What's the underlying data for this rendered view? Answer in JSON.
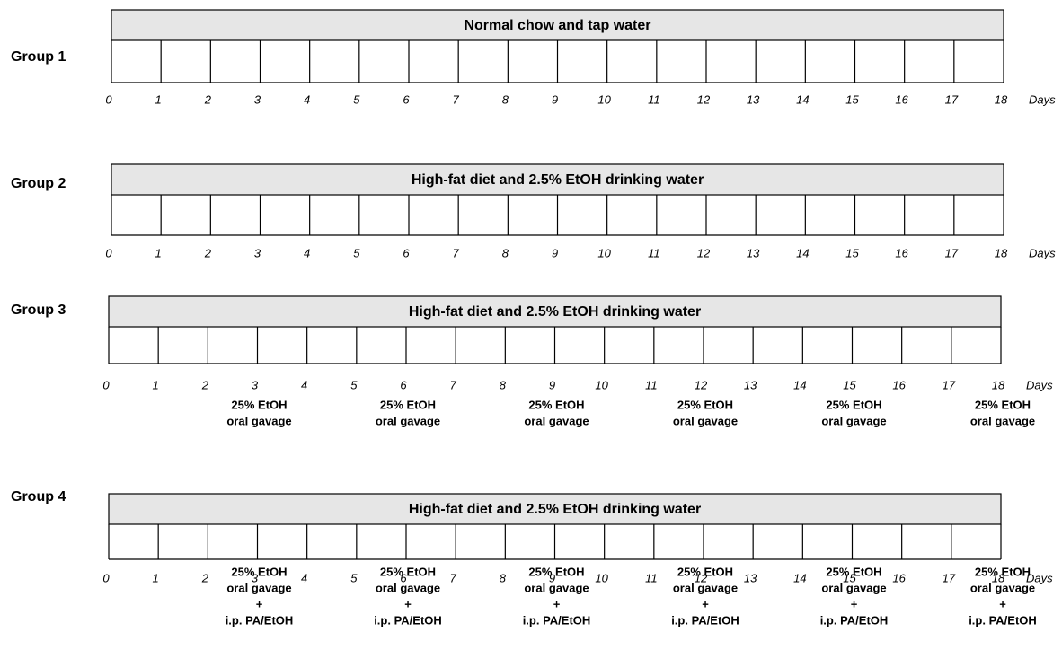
{
  "days_unit": "Days",
  "day_labels": [
    "0",
    "1",
    "2",
    "3",
    "4",
    "5",
    "6",
    "7",
    "8",
    "9",
    "10",
    "11",
    "12",
    "13",
    "14",
    "15",
    "16",
    "17",
    "18"
  ],
  "groups": [
    {
      "label": "Group 1",
      "bar_text": "Normal chow and tap water",
      "treatments": []
    },
    {
      "label": "Group 2",
      "bar_text": "High-fat diet and 2.5% EtOH drinking water",
      "treatments": []
    },
    {
      "label": "Group 3",
      "bar_text": "High-fat diet and 2.5% EtOH drinking water",
      "treatments": [
        {
          "day": 3,
          "lines": [
            "25% EtOH",
            "oral gavage"
          ]
        },
        {
          "day": 6,
          "lines": [
            "25% EtOH",
            "oral gavage"
          ]
        },
        {
          "day": 9,
          "lines": [
            "25% EtOH",
            "oral gavage"
          ]
        },
        {
          "day": 12,
          "lines": [
            "25% EtOH",
            "oral gavage"
          ]
        },
        {
          "day": 15,
          "lines": [
            "25% EtOH",
            "oral gavage"
          ]
        },
        {
          "day": 18,
          "lines": [
            "25% EtOH",
            "oral gavage"
          ]
        }
      ]
    },
    {
      "label": "Group 4",
      "bar_text": "High-fat diet and 2.5% EtOH drinking water",
      "treatments": [
        {
          "day": 3,
          "lines": [
            "25% EtOH",
            "oral gavage",
            "+",
            "i.p. PA/EtOH"
          ]
        },
        {
          "day": 6,
          "lines": [
            "25% EtOH",
            "oral gavage",
            "+",
            "i.p. PA/EtOH"
          ]
        },
        {
          "day": 9,
          "lines": [
            "25% EtOH",
            "oral gavage",
            "+",
            "i.p. PA/EtOH"
          ]
        },
        {
          "day": 12,
          "lines": [
            "25% EtOH",
            "oral gavage",
            "+",
            "i.p. PA/EtOH"
          ]
        },
        {
          "day": 15,
          "lines": [
            "25% EtOH",
            "oral gavage",
            "+",
            "i.p. PA/EtOH"
          ]
        },
        {
          "day": 18,
          "lines": [
            "25% EtOH",
            "oral gavage",
            "+",
            "i.p. PA/EtOH"
          ]
        }
      ]
    }
  ]
}
